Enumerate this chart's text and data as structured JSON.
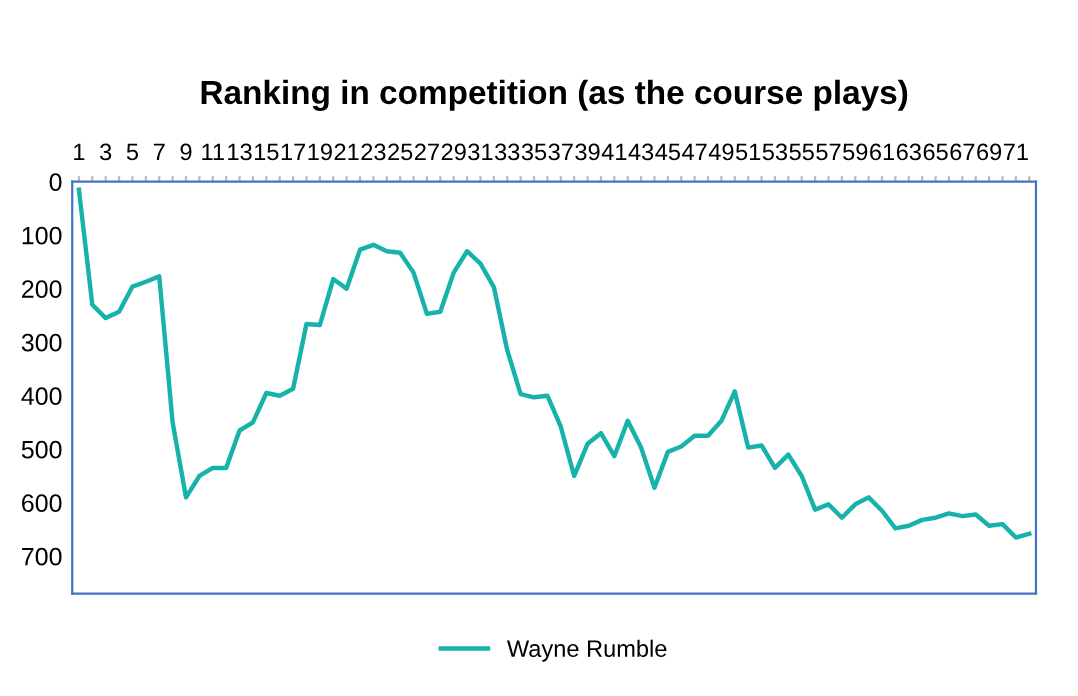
{
  "chart_data": {
    "type": "line",
    "title": "Ranking in competition (as the course plays)",
    "categories": [
      "1",
      null,
      "3",
      null,
      "5",
      null,
      "7",
      null,
      "9",
      null,
      "11",
      null,
      "13",
      null,
      "15",
      null,
      "17",
      null,
      "19",
      null,
      "21",
      null,
      "23",
      null,
      "25",
      null,
      "27",
      null,
      "29",
      null,
      "31",
      null,
      "33",
      null,
      "35",
      null,
      "37",
      null,
      "39",
      null,
      "41",
      null,
      "43",
      null,
      "45",
      null,
      "47",
      null,
      "49",
      null,
      "51",
      null,
      "53",
      null,
      "55",
      null,
      "57",
      null,
      "59",
      null,
      "61",
      null,
      "63",
      null,
      "65",
      null,
      "67",
      null,
      "69",
      null,
      "71",
      null
    ],
    "series": [
      {
        "name": "Wayne Rumble",
        "color": "#17b3ab",
        "values": [
          15,
          230,
          255,
          243,
          196,
          187,
          177,
          450,
          590,
          550,
          535,
          535,
          465,
          450,
          395,
          400,
          387,
          266,
          268,
          182,
          200,
          127,
          118,
          130,
          133,
          170,
          247,
          243,
          170,
          130,
          153,
          197,
          315,
          397,
          403,
          400,
          458,
          550,
          490,
          470,
          513,
          447,
          497,
          572,
          505,
          495,
          475,
          475,
          447,
          392,
          497,
          493,
          535,
          510,
          550,
          613,
          603,
          628,
          603,
          590,
          615,
          648,
          643,
          632,
          628,
          620,
          625,
          622,
          643,
          640,
          665,
          658
        ]
      }
    ],
    "ylim": [
      770,
      0
    ],
    "yticks": [
      0,
      100,
      200,
      300,
      400,
      500,
      600,
      700
    ],
    "grid": false,
    "legend": "bottom",
    "marker": "none",
    "line_style": "solid"
  }
}
